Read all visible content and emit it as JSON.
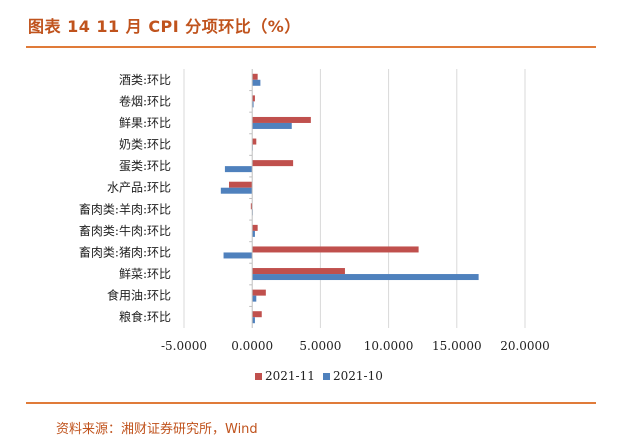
{
  "header": {
    "title": "图表 14 11 月 CPI 分项环比（%）"
  },
  "footer": {
    "source": "资料来源：湘财证券研究所，Wind"
  },
  "colors": {
    "series1": "#c0504d",
    "series2": "#4f81bd",
    "accent": "#e07b39",
    "grid": "#d9d9d9"
  },
  "chart_data": {
    "type": "bar",
    "orientation": "horizontal",
    "categories": [
      "酒类:环比",
      "卷烟:环比",
      "鲜果:环比",
      "奶类:环比",
      "蛋类:环比",
      "水产品:环比",
      "畜肉类:羊肉:环比",
      "畜肉类:牛肉:环比",
      "畜肉类:猪肉:环比",
      "鲜菜:环比",
      "食用油:环比",
      "粮食:环比"
    ],
    "series": [
      {
        "name": "2021-11",
        "values": [
          0.4,
          0.2,
          4.3,
          0.3,
          3.0,
          -1.7,
          -0.1,
          0.4,
          12.2,
          6.8,
          1.0,
          0.7
        ]
      },
      {
        "name": "2021-10",
        "values": [
          0.6,
          0.1,
          2.9,
          0.0,
          -2.0,
          -2.3,
          0.0,
          0.2,
          -2.1,
          16.6,
          0.3,
          0.2
        ]
      }
    ],
    "xlim": [
      -5,
      20
    ],
    "xticks": [
      "-5.0000",
      "0.0000",
      "5.0000",
      "10.0000",
      "15.0000",
      "20.0000"
    ],
    "xtick_values": [
      -5,
      0,
      5,
      10,
      15,
      20
    ],
    "grid": true,
    "legend": "bottom"
  }
}
